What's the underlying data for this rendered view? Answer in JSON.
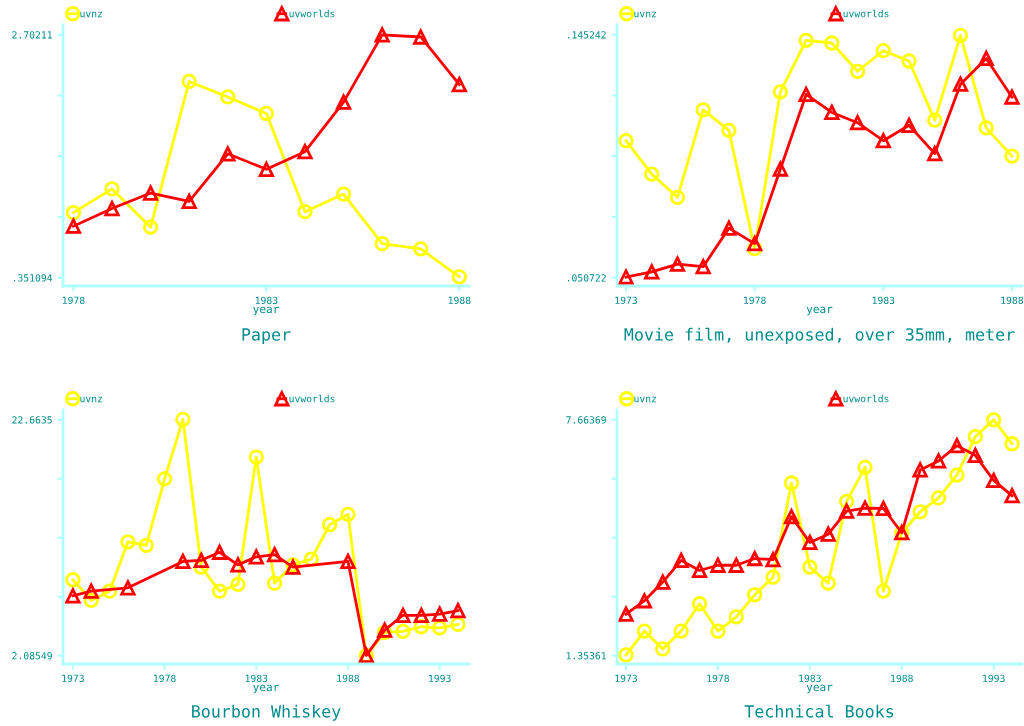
{
  "chart_data": [
    {
      "type": "line",
      "title": "Paper",
      "xlabel": "year",
      "legend": "top",
      "grid": false,
      "x": [
        1978,
        1979,
        1980,
        1981,
        1982,
        1983,
        1984,
        1985,
        1986,
        1987,
        1988
      ],
      "xlim": [
        1977.73,
        1988.25
      ],
      "xticks": [
        1978,
        1983,
        1988
      ],
      "ylim": [
        0.271,
        2.796
      ],
      "yticks": [
        {
          "value": 0.351094,
          "label": ".351094"
        },
        {
          "value": 0.9388,
          "label": null
        },
        {
          "value": 1.5266,
          "label": null
        },
        {
          "value": 2.1144,
          "label": null
        },
        2.70211
      ],
      "series": [
        {
          "name": "uvnz",
          "color": "#ffff00",
          "marker": "circle",
          "values": [
            0.98,
            1.21,
            0.84,
            2.25,
            2.1,
            1.94,
            0.99,
            1.16,
            0.68,
            0.63,
            0.36
          ]
        },
        {
          "name": "uvworlds",
          "color": "#ff0000",
          "marker": "triangle",
          "values": [
            0.85,
            1.02,
            1.17,
            1.09,
            1.55,
            1.4,
            1.57,
            2.05,
            2.7,
            2.68,
            2.22
          ]
        }
      ]
    },
    {
      "type": "line",
      "title": "Movie film, unexposed, over 35mm, meter",
      "xlabel": "year",
      "legend": "top",
      "grid": false,
      "x": [
        1973,
        1974,
        1975,
        1976,
        1977,
        1978,
        1979,
        1980,
        1981,
        1982,
        1983,
        1984,
        1985,
        1986,
        1987,
        1988
      ],
      "xlim": [
        1972.65,
        1988.39
      ],
      "xticks": [
        1973,
        1978,
        1983,
        1988
      ],
      "ylim": [
        0.0475,
        0.149
      ],
      "yticks": [
        {
          "value": 0.050722,
          "label": ".050722"
        },
        {
          "value": 0.07435,
          "label": null
        },
        {
          "value": 0.09798,
          "label": null
        },
        {
          "value": 0.12161,
          "label": null
        },
        {
          "value": 0.145242,
          "label": ".145242"
        }
      ],
      "series": [
        {
          "name": "uvnz",
          "color": "#ffff00",
          "marker": "circle",
          "values": [
            0.104,
            0.091,
            0.082,
            0.116,
            0.108,
            0.062,
            0.123,
            0.143,
            0.142,
            0.131,
            0.139,
            0.135,
            0.112,
            0.145,
            0.109,
            0.098
          ]
        },
        {
          "name": "uvworlds",
          "color": "#ff0000",
          "marker": "triangle",
          "values": [
            0.051,
            0.053,
            0.056,
            0.055,
            0.07,
            0.064,
            0.093,
            0.122,
            0.115,
            0.111,
            0.104,
            0.11,
            0.099,
            0.126,
            0.136,
            0.121
          ]
        }
      ]
    },
    {
      "type": "line",
      "title": "Bourbon Whiskey",
      "xlabel": "year",
      "legend": "top",
      "grid": false,
      "xlim": [
        1972.46,
        1994.6
      ],
      "xticks": [
        1973,
        1978,
        1983,
        1988,
        1993
      ],
      "ylim": [
        1.35,
        23.51
      ],
      "yticks": [
        2.08549,
        {
          "value": 7.23,
          "label": null
        },
        {
          "value": 12.3745,
          "label": null
        },
        {
          "value": 17.519,
          "label": null
        },
        22.6635
      ],
      "series": [
        {
          "name": "uvnz",
          "color": "#ffff00",
          "marker": "circle",
          "x": [
            1973,
            1974,
            1975,
            1976,
            1977,
            1978,
            1979,
            1980,
            1981,
            1982,
            1983,
            1984,
            1985,
            1986,
            1987,
            1988,
            1989,
            1990,
            1991,
            1992,
            1993,
            1994
          ],
          "values": [
            8.7,
            6.9,
            7.7,
            12.0,
            11.7,
            17.5,
            22.7,
            9.8,
            7.7,
            8.3,
            19.4,
            8.4,
            10.0,
            10.5,
            13.5,
            14.4,
            2.1,
            4.1,
            4.2,
            4.6,
            4.5,
            4.8
          ]
        },
        {
          "name": "uvworlds",
          "color": "#ff0000",
          "marker": "triangle",
          "x": [
            1973,
            1974,
            1976,
            1979,
            1980,
            1981,
            1982,
            1983,
            1984,
            1985,
            1988,
            1989,
            1990,
            1991,
            1992,
            1993,
            1994
          ],
          "values": [
            7.3,
            7.7,
            8.0,
            10.3,
            10.4,
            11.1,
            10.0,
            10.7,
            10.9,
            9.8,
            10.3,
            2.1,
            4.3,
            5.6,
            5.6,
            5.7,
            6.0
          ]
        }
      ]
    },
    {
      "type": "line",
      "title": "Technical Books",
      "xlabel": "year",
      "legend": "top",
      "grid": false,
      "x": [
        1973,
        1974,
        1975,
        1976,
        1977,
        1978,
        1979,
        1980,
        1981,
        1982,
        1983,
        1984,
        1985,
        1986,
        1987,
        1988,
        1989,
        1990,
        1991,
        1992,
        1993,
        1994
      ],
      "xlim": [
        1972.51,
        1994.54
      ],
      "xticks": [
        1973,
        1978,
        1983,
        1988,
        1993
      ],
      "ylim": [
        1.128,
        7.923
      ],
      "yticks": [
        1.35361,
        {
          "value": 2.9311,
          "label": null
        },
        {
          "value": 4.5086,
          "label": null
        },
        {
          "value": 6.0862,
          "label": null
        },
        7.66369
      ],
      "series": [
        {
          "name": "uvnz",
          "color": "#ffff00",
          "marker": "circle",
          "values": [
            1.37,
            2.01,
            1.53,
            2.01,
            2.74,
            2.01,
            2.39,
            2.98,
            3.45,
            5.97,
            3.72,
            3.29,
            5.48,
            6.39,
            3.08,
            4.64,
            5.2,
            5.57,
            6.18,
            7.21,
            7.66,
            7.02
          ]
        },
        {
          "name": "uvworlds",
          "color": "#ff0000",
          "marker": "triangle",
          "values": [
            2.46,
            2.82,
            3.32,
            3.9,
            3.63,
            3.77,
            3.77,
            3.95,
            3.92,
            5.07,
            4.38,
            4.6,
            5.22,
            5.3,
            5.29,
            4.64,
            6.32,
            6.56,
            6.97,
            6.71,
            6.04,
            5.63
          ]
        }
      ]
    }
  ]
}
